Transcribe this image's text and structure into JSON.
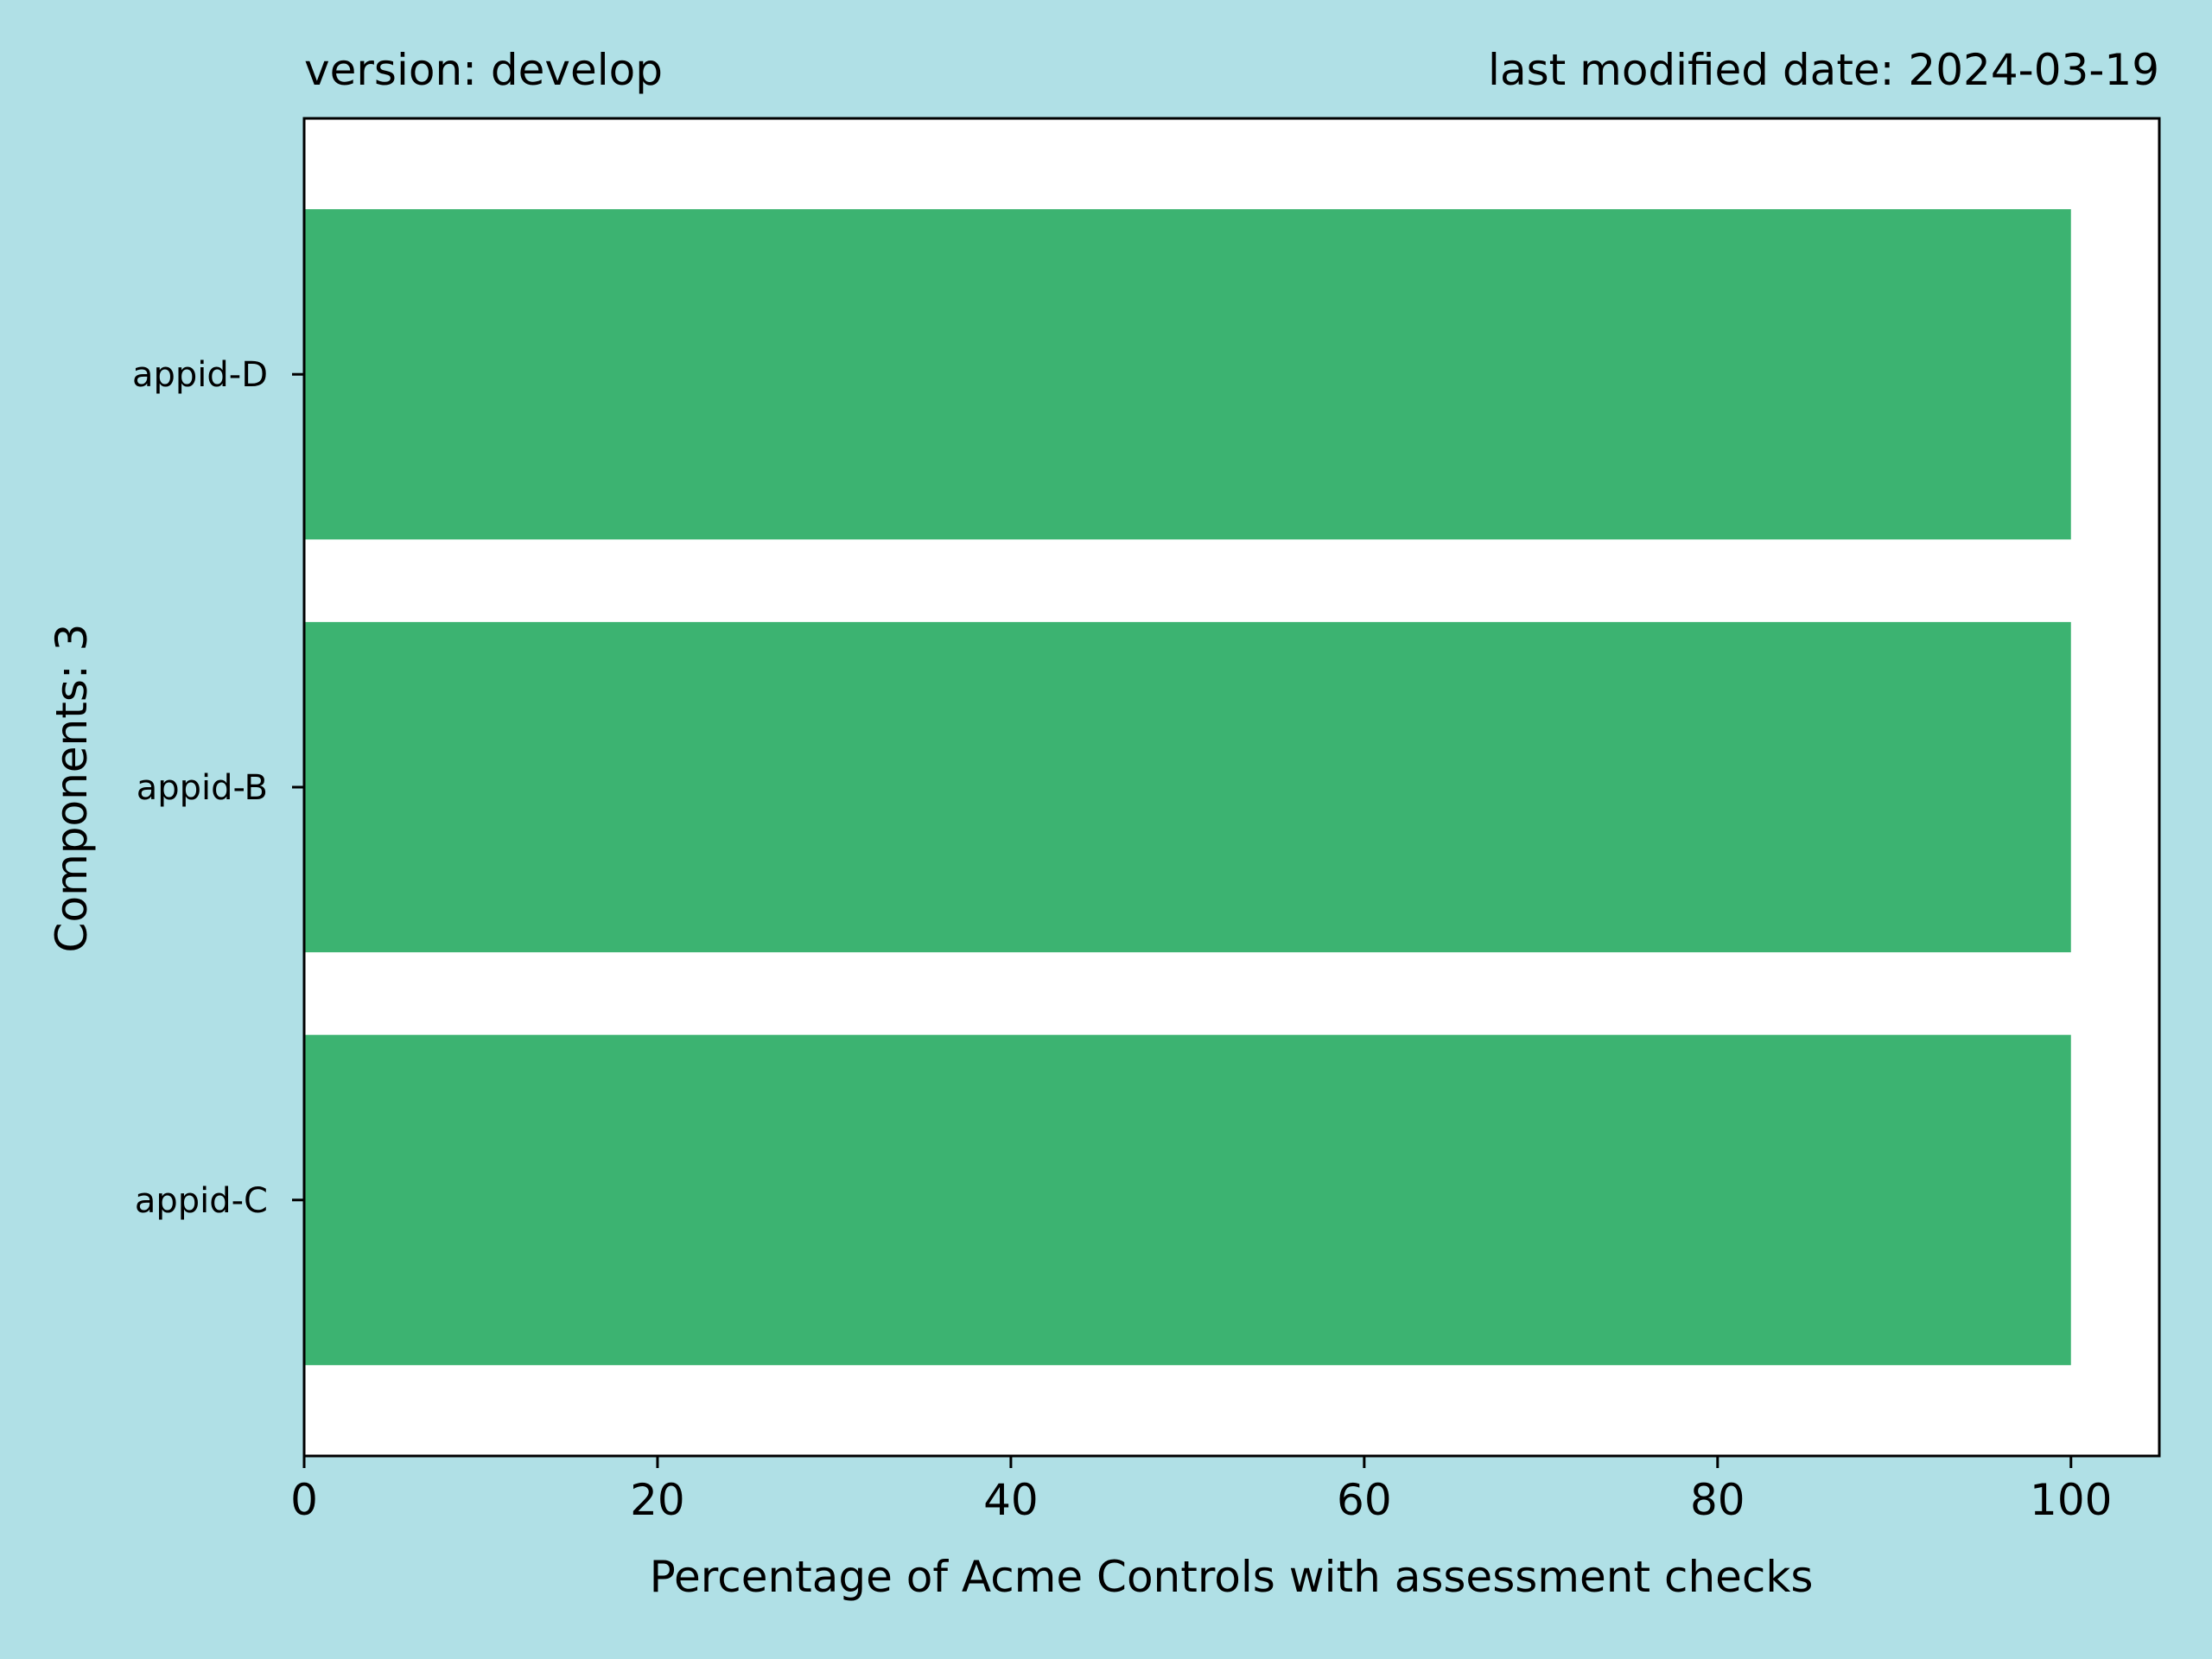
{
  "header": {
    "left_text": "version: develop",
    "right_text": "last modified date: 2024-03-19"
  },
  "chart_data": {
    "type": "bar",
    "orientation": "horizontal",
    "categories": [
      "appid-D",
      "appid-B",
      "appid-C"
    ],
    "values": [
      100,
      100,
      100
    ],
    "xlabel": "Percentage of Acme Controls with assessment checks",
    "ylabel": "Components: 3",
    "xlim": [
      0,
      105
    ],
    "xticks": [
      0,
      20,
      40,
      60,
      80,
      100
    ],
    "grid": false,
    "legend": "none",
    "colors": {
      "figure_background": "#b0e0e6",
      "plot_background": "#ffffff",
      "bar": "#3cb371",
      "axis": "#000000"
    }
  }
}
